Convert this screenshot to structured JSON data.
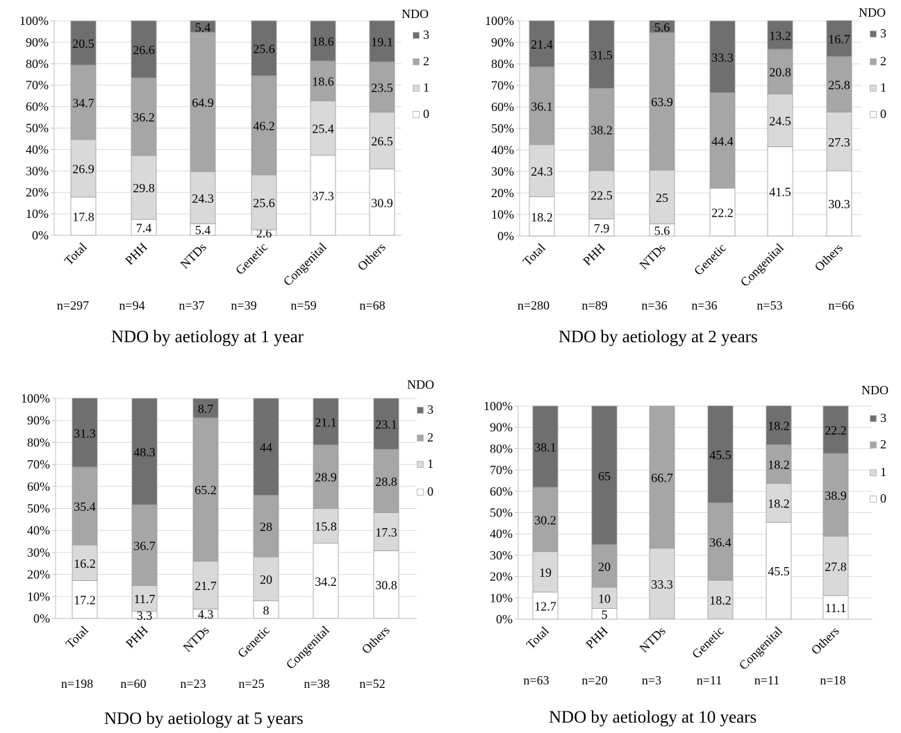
{
  "colors": {
    "s0": "#ffffff",
    "s1": "#d9d9d9",
    "s2": "#a6a6a6",
    "s3": "#6f6f6f",
    "grid": "#d9d9d9",
    "axis": "#bfbfbf"
  },
  "chart_data": [
    {
      "type": "bar",
      "stacked": true,
      "title": "NDO by aetiology at 1 year",
      "legend_title": "NDO",
      "legend_position": "right",
      "categories": [
        "Total",
        "PHH",
        "NTDs",
        "Genetic",
        "Congenital",
        "Others"
      ],
      "n_labels": [
        "n=297",
        "n=94",
        "n=37",
        "n=39",
        "n=59",
        "n=68"
      ],
      "y_ticks": [
        "0%",
        "10%",
        "20%",
        "30%",
        "40%",
        "50%",
        "60%",
        "70%",
        "80%",
        "90%",
        "100%"
      ],
      "ylim": [
        0,
        100
      ],
      "series": [
        {
          "name": "0",
          "values": [
            17.8,
            7.4,
            5.4,
            2.6,
            37.3,
            30.9
          ]
        },
        {
          "name": "1",
          "values": [
            26.9,
            29.8,
            24.3,
            25.6,
            25.4,
            26.5
          ]
        },
        {
          "name": "2",
          "values": [
            34.7,
            36.2,
            64.9,
            46.2,
            18.6,
            23.5
          ]
        },
        {
          "name": "3",
          "values": [
            20.5,
            26.6,
            5.4,
            25.6,
            18.6,
            19.1
          ]
        }
      ]
    },
    {
      "type": "bar",
      "stacked": true,
      "title": "NDO by aetiology at 2 years",
      "legend_title": "NDO",
      "legend_position": "right",
      "categories": [
        "Total",
        "PHH",
        "NTDs",
        "Genetic",
        "Congenital",
        "Others"
      ],
      "n_labels": [
        "n=280",
        "n=89",
        "n=36",
        "n=36",
        "n=53",
        "n=66"
      ],
      "y_ticks": [
        "0%",
        "10%",
        "20%",
        "30%",
        "40%",
        "50%",
        "60%",
        "70%",
        "80%",
        "90%",
        "100%"
      ],
      "ylim": [
        0,
        100
      ],
      "series": [
        {
          "name": "0",
          "values": [
            18.2,
            7.9,
            5.6,
            22.2,
            41.5,
            30.3
          ]
        },
        {
          "name": "1",
          "values": [
            24.3,
            22.5,
            25,
            0,
            24.5,
            27.3
          ]
        },
        {
          "name": "2",
          "values": [
            36.1,
            38.2,
            63.9,
            44.4,
            20.8,
            25.8
          ]
        },
        {
          "name": "3",
          "values": [
            21.4,
            31.5,
            5.6,
            33.3,
            13.2,
            16.7
          ]
        }
      ]
    },
    {
      "type": "bar",
      "stacked": true,
      "title": "NDO by aetiology at 5 years",
      "legend_title": "NDO",
      "legend_position": "right",
      "categories": [
        "Total",
        "PHH",
        "NTDs",
        "Genetic",
        "Congenital",
        "Others"
      ],
      "n_labels": [
        "n=198",
        "n=60",
        "n=23",
        "n=25",
        "n=38",
        "n=52"
      ],
      "y_ticks": [
        "0%",
        "10%",
        "20%",
        "30%",
        "40%",
        "50%",
        "60%",
        "70%",
        "80%",
        "90%",
        "100%"
      ],
      "ylim": [
        0,
        100
      ],
      "series": [
        {
          "name": "0",
          "values": [
            17.2,
            3.3,
            4.3,
            8,
            34.2,
            30.8
          ]
        },
        {
          "name": "1",
          "values": [
            16.2,
            11.7,
            21.7,
            20,
            15.8,
            17.3
          ]
        },
        {
          "name": "2",
          "values": [
            35.4,
            36.7,
            65.2,
            28,
            28.9,
            28.8
          ]
        },
        {
          "name": "3",
          "values": [
            31.3,
            48.3,
            8.7,
            44,
            21.1,
            23.1
          ]
        }
      ]
    },
    {
      "type": "bar",
      "stacked": true,
      "title": "NDO by aetiology at 10 years",
      "legend_title": "NDO",
      "legend_position": "right",
      "categories": [
        "Total",
        "PHH",
        "NTDs",
        "Genetic",
        "Congenital",
        "Others"
      ],
      "n_labels": [
        "n=63",
        "n=20",
        "n=3",
        "n=11",
        "n=11",
        "n=18"
      ],
      "y_ticks": [
        "0%",
        "10%",
        "20%",
        "30%",
        "40%",
        "50%",
        "60%",
        "70%",
        "80%",
        "90%",
        "100%"
      ],
      "ylim": [
        0,
        100
      ],
      "series": [
        {
          "name": "0",
          "values": [
            12.7,
            5,
            0,
            0,
            45.5,
            11.1
          ]
        },
        {
          "name": "1",
          "values": [
            19,
            10,
            33.3,
            18.2,
            18.2,
            27.8
          ]
        },
        {
          "name": "2",
          "values": [
            30.2,
            20,
            66.7,
            36.4,
            18.2,
            38.9
          ]
        },
        {
          "name": "3",
          "values": [
            38.1,
            65,
            0,
            45.5,
            18.2,
            22.2
          ]
        }
      ]
    }
  ]
}
